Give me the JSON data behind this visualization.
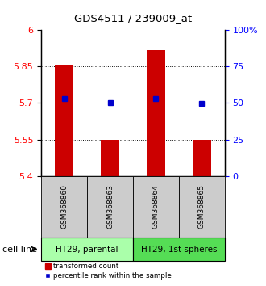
{
  "title": "GDS4511 / 239009_at",
  "samples": [
    "GSM368860",
    "GSM368863",
    "GSM368864",
    "GSM368865"
  ],
  "bar_bottoms": [
    5.4,
    5.4,
    5.4,
    5.4
  ],
  "bar_tops": [
    5.858,
    5.548,
    5.918,
    5.548
  ],
  "blue_markers": [
    5.718,
    5.7,
    5.718,
    5.698
  ],
  "ylim": [
    5.4,
    6.0
  ],
  "yticks_left": [
    5.4,
    5.55,
    5.7,
    5.85,
    6.0
  ],
  "ytick_left_labels": [
    "5.4",
    "5.55",
    "5.7",
    "5.85",
    "6"
  ],
  "right_ytick_positions": [
    5.4,
    5.55,
    5.7,
    5.85,
    6.0
  ],
  "right_ytick_labels": [
    "0",
    "25",
    "50",
    "75",
    "100%"
  ],
  "bar_color": "#cc0000",
  "blue_color": "#0000cc",
  "cell_line_groups": [
    {
      "label": "HT29, parental",
      "indices": [
        0,
        1
      ],
      "color": "#aaffaa"
    },
    {
      "label": "HT29, 1st spheres",
      "indices": [
        2,
        3
      ],
      "color": "#55dd55"
    }
  ],
  "dotted_lines": [
    5.55,
    5.7,
    5.85
  ],
  "sample_box_color": "#cccccc",
  "bar_width": 0.4,
  "legend_labels": [
    "transformed count",
    "percentile rank within the sample"
  ]
}
